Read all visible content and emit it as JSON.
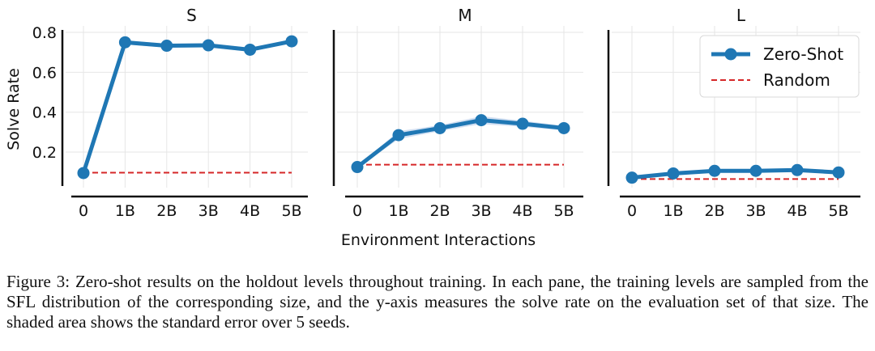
{
  "chart_data": {
    "type": "line",
    "x_ticks": [
      "0",
      "1B",
      "2B",
      "3B",
      "4B",
      "5B"
    ],
    "x_values": [
      0,
      1,
      2,
      3,
      4,
      5
    ],
    "xlabel": "Environment Interactions",
    "ylabel": "Solve Rate",
    "y_ticks": [
      "0.2",
      "0.4",
      "0.6",
      "0.8"
    ],
    "ylim": [
      0.03,
      0.8
    ],
    "grid": true,
    "legend_placement": "top-right of panel L",
    "colors": {
      "zero_shot": "#1f77b4",
      "random": "#d62728",
      "band": "#aec7e8"
    },
    "panels": [
      {
        "title": "S",
        "series": [
          {
            "name": "Zero-Shot",
            "style": "solid-marker",
            "values": [
              0.095,
              0.75,
              0.733,
              0.735,
              0.713,
              0.755
            ],
            "stderr": [
              0.005,
              0.01,
              0.01,
              0.01,
              0.01,
              0.01
            ]
          },
          {
            "name": "Random",
            "style": "dashed",
            "values": [
              0.097,
              0.097,
              0.097,
              0.097,
              0.097,
              0.097
            ]
          }
        ]
      },
      {
        "title": "M",
        "series": [
          {
            "name": "Zero-Shot",
            "style": "solid-marker",
            "values": [
              0.125,
              0.285,
              0.32,
              0.36,
              0.342,
              0.32
            ],
            "stderr": [
              0.005,
              0.02,
              0.015,
              0.02,
              0.015,
              0.012
            ]
          },
          {
            "name": "Random",
            "style": "dashed",
            "values": [
              0.137,
              0.137,
              0.137,
              0.137,
              0.137,
              0.137
            ]
          }
        ]
      },
      {
        "title": "L",
        "series": [
          {
            "name": "Zero-Shot",
            "style": "solid-marker",
            "values": [
              0.072,
              0.093,
              0.106,
              0.106,
              0.11,
              0.098
            ],
            "stderr": [
              0.004,
              0.006,
              0.006,
              0.006,
              0.006,
              0.006
            ]
          },
          {
            "name": "Random",
            "style": "dashed",
            "values": [
              0.065,
              0.065,
              0.065,
              0.065,
              0.065,
              0.065
            ]
          }
        ]
      }
    ],
    "legend": [
      "Zero-Shot",
      "Random"
    ]
  },
  "caption": "Figure 3: Zero-shot results on the holdout levels throughout training. In each pane, the training levels are sampled from the SFL distribution of the corresponding size, and the y-axis measures the solve rate on the evaluation set of that size. The shaded area shows the standard error over 5 seeds."
}
